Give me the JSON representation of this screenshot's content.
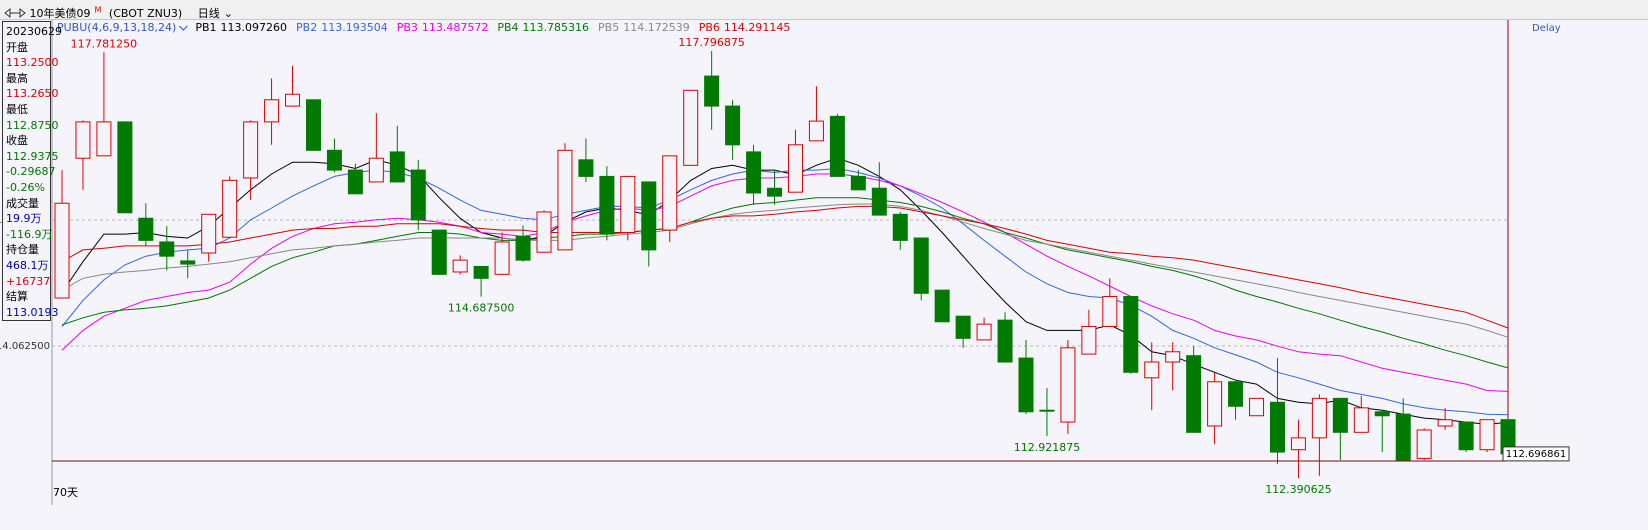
{
  "toolbar": {
    "title": "10年美债09",
    "title_sup": "M",
    "code": "(CBOT ZNU3)",
    "period": "日线"
  },
  "info_panel": [
    {
      "text": "20230629",
      "color": "#000000"
    },
    {
      "text": "开盘",
      "color": "#000000"
    },
    {
      "text": "113.2500",
      "color": "#dd0000"
    },
    {
      "text": "最高",
      "color": "#000000"
    },
    {
      "text": "113.2650",
      "color": "#dd0000"
    },
    {
      "text": "最低",
      "color": "#000000"
    },
    {
      "text": "112.8750",
      "color": "#007700"
    },
    {
      "text": "收盘",
      "color": "#000000"
    },
    {
      "text": "112.9375",
      "color": "#007700"
    },
    {
      "text": "-0.29687",
      "color": "#007700"
    },
    {
      "text": "-0.26%",
      "color": "#007700"
    },
    {
      "text": "成交量",
      "color": "#000000"
    },
    {
      "text": "19.9万",
      "color": "#0000aa"
    },
    {
      "text": "-116.9万",
      "color": "#007700"
    },
    {
      "text": "持仓量",
      "color": "#000000"
    },
    {
      "text": "468.1万",
      "color": "#0000aa"
    },
    {
      "text": "+16737",
      "color": "#dd0000"
    },
    {
      "text": "结算",
      "color": "#000000"
    },
    {
      "text": "113.0193",
      "color": "#0000aa"
    }
  ],
  "chart_data": {
    "type": "candlestick",
    "legend_title": "PUBU(4,6,9,13,18,24)",
    "delay_label": "Delay",
    "period_label": "70天",
    "up_color": "#e00000",
    "down_color": "#007a00",
    "ylim": [
      112.05,
      118.19
    ],
    "yticks": [
      {
        "value": 114.0625,
        "label": "114.062500"
      },
      115.65625
    ],
    "grid": true,
    "open": [
      114.67,
      116.44,
      116.47,
      116.9,
      115.68,
      115.38,
      115.14,
      115.24,
      115.44,
      116.19,
      116.9,
      117.1,
      117.18,
      116.54,
      116.29,
      116.14,
      116.52,
      116.29,
      115.53,
      115.0,
      115.07,
      114.97,
      115.45,
      115.25,
      115.28,
      116.42,
      116.21,
      115.5,
      116.14,
      115.53,
      116.35,
      117.48,
      117.1,
      116.52,
      116.06,
      116.01,
      116.66,
      116.97,
      116.21,
      116.06,
      115.73,
      115.43,
      114.77,
      114.44,
      114.14,
      114.39,
      113.91,
      113.25,
      113.1,
      113.96,
      114.31,
      114.69,
      113.66,
      113.86,
      113.94,
      113.05,
      113.61,
      113.18,
      113.35,
      112.75,
      112.9,
      113.4,
      112.97,
      113.23,
      113.2,
      112.64,
      113.05,
      113.1,
      112.75,
      113.13
    ],
    "high": [
      116.29,
      116.92,
      117.78125,
      116.9,
      115.87,
      115.58,
      115.28,
      115.73,
      116.21,
      116.92,
      117.45,
      117.61,
      117.18,
      116.69,
      116.37,
      117.01,
      116.85,
      116.42,
      115.53,
      115.21,
      115.07,
      115.5,
      115.59,
      115.78,
      116.63,
      116.69,
      116.34,
      116.21,
      116.14,
      116.47,
      117.3,
      117.796875,
      117.18,
      116.61,
      116.29,
      116.8,
      117.35,
      117.0,
      116.29,
      116.39,
      115.76,
      115.43,
      114.77,
      114.44,
      114.42,
      114.49,
      114.14,
      113.53,
      114.14,
      114.52,
      114.92,
      114.69,
      114.11,
      114.11,
      114.06,
      113.73,
      113.63,
      113.4,
      113.91,
      113.13,
      113.45,
      113.4,
      113.43,
      113.25,
      113.4,
      113.02,
      113.28,
      113.1,
      113.13,
      113.15
    ],
    "low": [
      114.67,
      116.04,
      116.47,
      115.75,
      115.33,
      115.02,
      114.92,
      115.13,
      115.44,
      115.91,
      116.61,
      117.1,
      116.54,
      116.26,
      115.99,
      116.14,
      116.14,
      115.53,
      114.96,
      114.97,
      114.6875,
      114.96,
      115.13,
      115.25,
      115.28,
      116.14,
      115.4,
      115.4,
      115.07,
      115.38,
      116.35,
      116.8,
      116.42,
      115.85,
      115.85,
      116.01,
      116.66,
      116.21,
      116.04,
      115.72,
      115.28,
      114.64,
      114.37,
      114.04,
      114.14,
      113.86,
      113.2,
      112.921875,
      112.95,
      113.96,
      114.31,
      113.71,
      113.25,
      113.5,
      112.97,
      112.82,
      113.13,
      113.18,
      112.57,
      112.390625,
      112.42,
      112.62,
      112.97,
      112.72,
      112.62,
      112.62,
      113.0,
      112.72,
      112.72,
      112.68
    ],
    "close": [
      115.87,
      116.9,
      116.9,
      115.75,
      115.4,
      115.2,
      115.1,
      115.73,
      116.16,
      116.9,
      117.18,
      117.25,
      116.54,
      116.29,
      115.99,
      116.44,
      116.14,
      115.66,
      114.97,
      115.15,
      114.92,
      115.38,
      115.15,
      115.76,
      116.54,
      116.21,
      115.48,
      116.21,
      115.28,
      116.47,
      117.3,
      117.1,
      116.61,
      116.0,
      115.96,
      116.61,
      116.91,
      116.21,
      116.04,
      115.72,
      115.4,
      114.73,
      114.37,
      114.16,
      114.34,
      113.86,
      113.23,
      113.24,
      114.04,
      114.31,
      114.69,
      113.73,
      113.86,
      113.99,
      112.97,
      113.61,
      113.3,
      113.4,
      112.72,
      112.9,
      113.4,
      112.97,
      113.28,
      113.18,
      112.62,
      113.0,
      113.13,
      112.75,
      113.13,
      112.696861
    ],
    "annotations": [
      {
        "text": "117.781250",
        "color": "#dd0000"
      },
      {
        "text": "117.796875",
        "color": "#dd0000"
      },
      {
        "text": "114.687500",
        "color": "#007700"
      },
      {
        "text": "112.921875",
        "color": "#007700"
      },
      {
        "text": "112.390625",
        "color": "#007700"
      }
    ],
    "series": [
      {
        "name": "PB1",
        "color": "#000000",
        "last_label": "113.097260",
        "values": [
          114.74,
          115.13,
          115.48,
          115.48,
          115.5,
          115.45,
          115.43,
          115.58,
          115.81,
          116.04,
          116.24,
          116.39,
          116.39,
          116.37,
          116.31,
          116.42,
          116.35,
          116.23,
          115.94,
          115.68,
          115.5,
          115.43,
          115.4,
          115.45,
          115.63,
          115.76,
          115.81,
          115.78,
          115.72,
          115.91,
          116.16,
          116.31,
          116.35,
          116.29,
          116.29,
          116.23,
          116.35,
          116.44,
          116.35,
          116.21,
          116.04,
          115.78,
          115.5,
          115.2,
          114.9,
          114.62,
          114.37,
          114.26,
          114.26,
          114.26,
          114.33,
          114.2,
          113.99,
          113.94,
          113.83,
          113.73,
          113.63,
          113.58,
          113.4,
          113.35,
          113.33,
          113.38,
          113.28,
          113.25,
          113.2,
          113.15,
          113.13,
          113.1,
          113.07,
          113.09726
        ]
      },
      {
        "name": "PB2",
        "color": "#3366dd",
        "last_label": "113.193504",
        "values": [
          114.31,
          114.64,
          114.9,
          115.09,
          115.2,
          115.25,
          115.28,
          115.3,
          115.43,
          115.66,
          115.81,
          115.96,
          116.09,
          116.21,
          116.26,
          116.29,
          116.26,
          116.19,
          116.06,
          115.91,
          115.78,
          115.73,
          115.68,
          115.66,
          115.73,
          115.78,
          115.83,
          115.83,
          115.81,
          115.91,
          116.04,
          116.16,
          116.24,
          116.29,
          116.26,
          116.29,
          116.29,
          116.31,
          116.26,
          116.19,
          116.09,
          115.96,
          115.81,
          115.61,
          115.4,
          115.2,
          115.0,
          114.85,
          114.74,
          114.69,
          114.67,
          114.58,
          114.44,
          114.26,
          114.16,
          114.04,
          113.95,
          113.86,
          113.73,
          113.66,
          113.58,
          113.5,
          113.45,
          113.4,
          113.33,
          113.28,
          113.25,
          113.23,
          113.2,
          113.193504
        ]
      },
      {
        "name": "PB3",
        "color": "#ee00ee",
        "last_label": "113.487572",
        "values": [
          114.01,
          114.26,
          114.44,
          114.54,
          114.64,
          114.69,
          114.74,
          114.77,
          114.87,
          115.1,
          115.3,
          115.45,
          115.55,
          115.61,
          115.63,
          115.66,
          115.68,
          115.66,
          115.63,
          115.58,
          115.5,
          115.48,
          115.45,
          115.5,
          115.63,
          115.71,
          115.78,
          115.81,
          115.78,
          115.83,
          115.96,
          116.09,
          116.16,
          116.19,
          116.19,
          116.21,
          116.24,
          116.24,
          116.21,
          116.16,
          116.09,
          115.99,
          115.88,
          115.76,
          115.63,
          115.5,
          115.35,
          115.2,
          115.07,
          114.95,
          114.82,
          114.69,
          114.57,
          114.47,
          114.39,
          114.26,
          114.19,
          114.14,
          114.06,
          113.99,
          113.96,
          113.94,
          113.86,
          113.78,
          113.73,
          113.68,
          113.63,
          113.58,
          113.5,
          113.487572
        ]
      },
      {
        "name": "PB4",
        "color": "#007700",
        "last_label": "113.785316",
        "values": [
          114.33,
          114.42,
          114.49,
          114.52,
          114.54,
          114.57,
          114.62,
          114.67,
          114.77,
          114.92,
          115.07,
          115.18,
          115.25,
          115.33,
          115.35,
          115.4,
          115.45,
          115.5,
          115.5,
          115.48,
          115.43,
          115.4,
          115.4,
          115.43,
          115.45,
          115.48,
          115.48,
          115.5,
          115.53,
          115.55,
          115.63,
          115.73,
          115.81,
          115.86,
          115.88,
          115.91,
          115.94,
          115.94,
          115.94,
          115.91,
          115.88,
          115.83,
          115.76,
          115.68,
          115.61,
          115.5,
          115.43,
          115.35,
          115.28,
          115.23,
          115.18,
          115.13,
          115.07,
          115.02,
          114.95,
          114.87,
          114.77,
          114.69,
          114.62,
          114.54,
          114.47,
          114.39,
          114.31,
          114.24,
          114.16,
          114.09,
          114.01,
          113.94,
          113.86,
          113.785316
        ]
      },
      {
        "name": "PB5",
        "color": "#888888",
        "last_label": "114.172539",
        "values": [
          114.77,
          114.92,
          114.97,
          115.0,
          115.02,
          115.05,
          115.07,
          115.1,
          115.13,
          115.18,
          115.23,
          115.28,
          115.3,
          115.33,
          115.35,
          115.38,
          115.4,
          115.43,
          115.43,
          115.43,
          115.43,
          115.43,
          115.4,
          115.4,
          115.4,
          115.43,
          115.45,
          115.48,
          115.5,
          115.53,
          115.61,
          115.68,
          115.73,
          115.76,
          115.78,
          115.81,
          115.83,
          115.85,
          115.86,
          115.86,
          115.83,
          115.78,
          115.71,
          115.63,
          115.55,
          115.48,
          115.4,
          115.35,
          115.3,
          115.25,
          115.2,
          115.15,
          115.1,
          115.05,
          115.0,
          114.95,
          114.9,
          114.85,
          114.8,
          114.74,
          114.69,
          114.64,
          114.59,
          114.54,
          114.49,
          114.44,
          114.39,
          114.34,
          114.26,
          114.172539
        ]
      },
      {
        "name": "PB6",
        "color": "#dd0000",
        "last_label": "114.291145",
        "values": [
          115.13,
          115.28,
          115.3,
          115.33,
          115.33,
          115.33,
          115.33,
          115.35,
          115.38,
          115.43,
          115.48,
          115.53,
          115.55,
          115.55,
          115.58,
          115.58,
          115.61,
          115.61,
          115.61,
          115.58,
          115.55,
          115.53,
          115.53,
          115.5,
          115.5,
          115.5,
          115.5,
          115.5,
          115.53,
          115.55,
          115.63,
          115.68,
          115.71,
          115.71,
          115.73,
          115.76,
          115.78,
          115.81,
          115.83,
          115.83,
          115.81,
          115.76,
          115.71,
          115.66,
          115.61,
          115.55,
          115.48,
          115.4,
          115.35,
          115.3,
          115.25,
          115.23,
          115.2,
          115.18,
          115.15,
          115.1,
          115.05,
          115.0,
          114.95,
          114.9,
          114.85,
          114.8,
          114.74,
          114.69,
          114.64,
          114.59,
          114.54,
          114.49,
          114.39,
          114.291145
        ]
      }
    ]
  }
}
